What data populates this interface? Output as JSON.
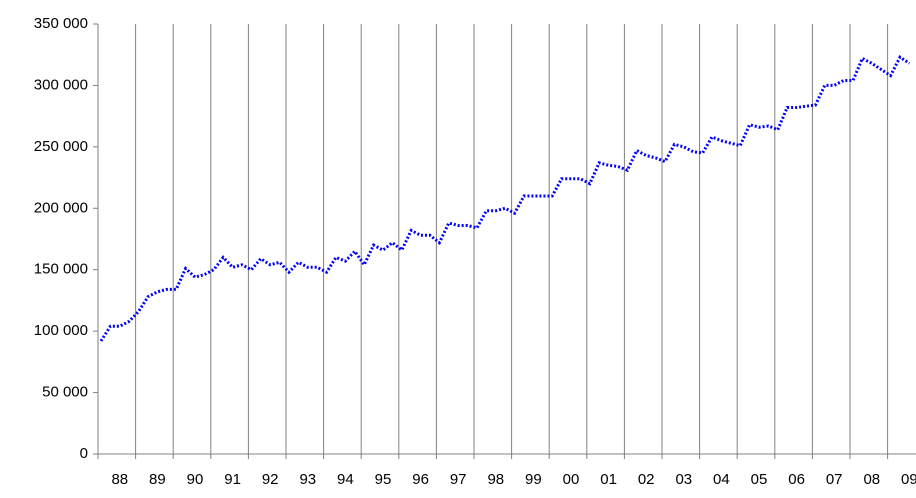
{
  "chart_data": {
    "type": "line",
    "color": "#0000ff",
    "categories": [
      "88",
      null,
      null,
      null,
      "89",
      null,
      null,
      null,
      "90",
      null,
      null,
      null,
      "91",
      null,
      null,
      null,
      "92",
      null,
      null,
      null,
      "93",
      null,
      null,
      null,
      "94",
      null,
      null,
      null,
      "95",
      null,
      null,
      null,
      "96",
      null,
      null,
      null,
      "97",
      null,
      null,
      null,
      "98",
      null,
      null,
      null,
      "99",
      null,
      null,
      null,
      "00",
      null,
      null,
      null,
      "01",
      null,
      null,
      null,
      "02",
      null,
      null,
      null,
      "03",
      null,
      null,
      null,
      "04",
      null,
      null,
      null,
      "05",
      null,
      null,
      null,
      "06",
      null,
      null,
      null,
      "07",
      null,
      null,
      null,
      "08",
      null,
      null,
      null,
      "09",
      null,
      null
    ],
    "values": [
      92000,
      104000,
      104000,
      108000,
      116000,
      128000,
      132000,
      134000,
      134000,
      151000,
      144000,
      146000,
      150000,
      160000,
      152000,
      154000,
      150000,
      159000,
      154000,
      156000,
      148000,
      156000,
      152000,
      152000,
      148000,
      160000,
      157000,
      165000,
      154000,
      170000,
      166000,
      172000,
      166000,
      182000,
      178000,
      178000,
      172000,
      188000,
      186000,
      186000,
      184000,
      198000,
      198000,
      200000,
      196000,
      210000,
      210000,
      210000,
      210000,
      224000,
      224000,
      224000,
      220000,
      237000,
      235000,
      234000,
      231000,
      247000,
      243000,
      241000,
      238000,
      252000,
      250000,
      246000,
      245000,
      258000,
      255000,
      253000,
      251000,
      268000,
      266000,
      267000,
      264000,
      282000,
      282000,
      283000,
      284000,
      300000,
      300000,
      304000,
      304000,
      322000,
      318000,
      313000,
      308000,
      323000,
      318000
    ],
    "ylim": [
      0,
      350000
    ],
    "yticks": [
      0,
      {
        "value": 50000,
        "label": "50 000"
      },
      {
        "value": 100000,
        "label": "100 000"
      },
      {
        "value": 150000,
        "label": "150 000"
      },
      {
        "value": 200000,
        "label": "200 000"
      },
      {
        "value": 250000,
        "label": "250 000"
      },
      {
        "value": 300000,
        "label": "300 000"
      },
      {
        "value": 350000,
        "label": "350 000"
      }
    ]
  }
}
